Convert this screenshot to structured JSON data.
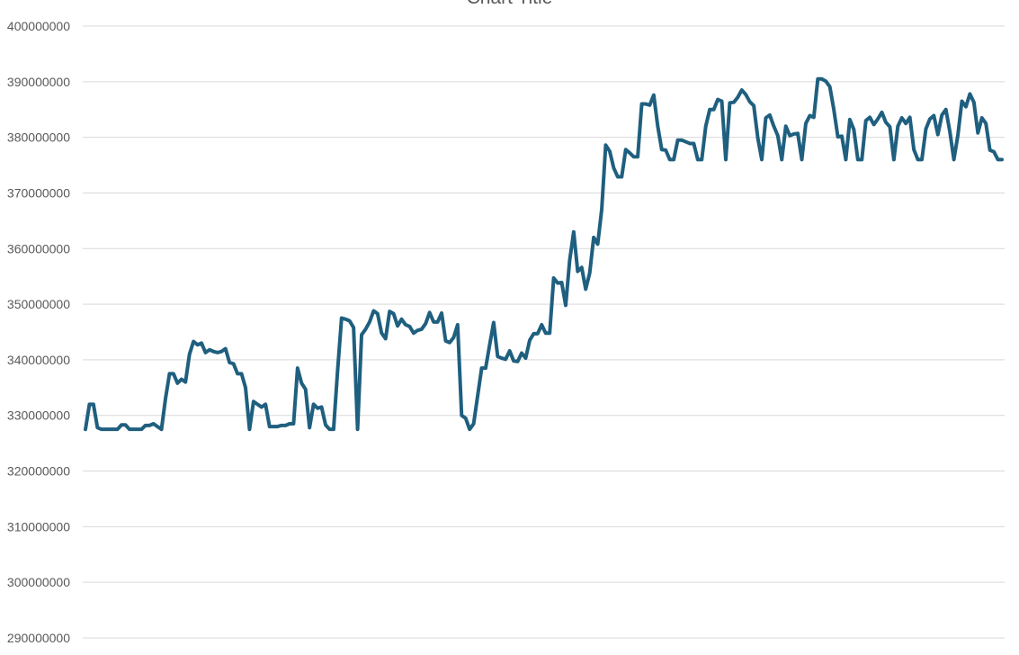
{
  "chart_data": {
    "type": "line",
    "title": "Chart Title",
    "xlabel": "",
    "ylabel": "",
    "ylim": [
      290000000,
      400000000
    ],
    "y_ticks": [
      "290000000",
      "300000000",
      "310000000",
      "320000000",
      "330000000",
      "340000000",
      "350000000",
      "360000000",
      "370000000",
      "380000000",
      "390000000",
      "400000000"
    ],
    "grid": true,
    "series": [
      {
        "color": "#1f5f7f",
        "values": [
          327500000,
          332000000,
          332000000,
          327800000,
          327500000,
          327500000,
          327500000,
          327500000,
          327500000,
          328300000,
          328300000,
          327500000,
          327500000,
          327500000,
          327500000,
          328200000,
          328200000,
          328500000,
          328000000,
          327500000,
          333000000,
          337500000,
          337500000,
          335800000,
          336500000,
          336000000,
          341000000,
          343300000,
          342700000,
          343000000,
          341300000,
          341800000,
          341500000,
          341300000,
          341500000,
          342000000,
          339500000,
          339300000,
          337500000,
          337500000,
          335000000,
          327500000,
          332500000,
          332000000,
          331500000,
          332000000,
          328000000,
          328000000,
          328000000,
          328200000,
          328200000,
          328500000,
          328500000,
          338500000,
          335800000,
          334700000,
          327800000,
          332000000,
          331300000,
          331500000,
          328300000,
          327500000,
          327500000,
          338000000,
          347500000,
          347300000,
          347000000,
          345800000,
          327500000,
          344500000,
          345500000,
          346800000,
          348800000,
          348300000,
          344800000,
          343800000,
          348700000,
          348300000,
          346100000,
          347300000,
          346300000,
          346000000,
          344800000,
          345300000,
          345500000,
          346500000,
          348500000,
          346800000,
          346800000,
          348400000,
          343400000,
          343100000,
          344000000,
          346300000,
          330000000,
          329500000,
          327500000,
          328500000,
          333500000,
          338500000,
          338500000,
          342700000,
          346700000,
          340600000,
          340300000,
          340100000,
          341600000,
          339800000,
          339700000,
          341200000,
          340300000,
          343500000,
          344700000,
          344700000,
          346300000,
          344800000,
          344800000,
          354700000,
          353800000,
          353900000,
          349800000,
          357900000,
          363000000,
          355900000,
          356600000,
          352700000,
          355600000,
          362000000,
          360800000,
          367000000,
          378600000,
          377500000,
          374500000,
          372900000,
          372900000,
          377800000,
          377200000,
          376500000,
          376500000,
          386000000,
          386000000,
          385800000,
          387600000,
          382000000,
          377800000,
          377700000,
          376000000,
          376000000,
          379500000,
          379500000,
          379200000,
          378900000,
          378900000,
          376000000,
          376000000,
          382000000,
          385000000,
          385000000,
          386800000,
          386500000,
          376000000,
          386200000,
          386300000,
          387200000,
          388500000,
          387700000,
          386400000,
          385700000,
          379900000,
          376000000,
          383500000,
          384000000,
          382000000,
          380300000,
          376000000,
          382000000,
          380300000,
          380600000,
          380700000,
          376000000,
          382500000,
          383900000,
          383600000,
          390500000,
          390500000,
          390100000,
          389100000,
          385000000,
          380100000,
          380200000,
          376000000,
          383200000,
          381400000,
          376000000,
          376000000,
          383000000,
          383600000,
          382300000,
          383300000,
          384500000,
          382700000,
          381900000,
          376000000,
          382000000,
          383500000,
          382500000,
          383600000,
          377800000,
          376000000,
          376000000,
          381500000,
          383300000,
          383900000,
          380500000,
          384000000,
          385000000,
          381000000,
          376000000,
          380400000,
          386500000,
          385500000,
          387800000,
          386300000,
          380800000,
          383500000,
          382500000,
          377700000,
          377400000,
          376000000,
          376000000
        ]
      }
    ]
  }
}
